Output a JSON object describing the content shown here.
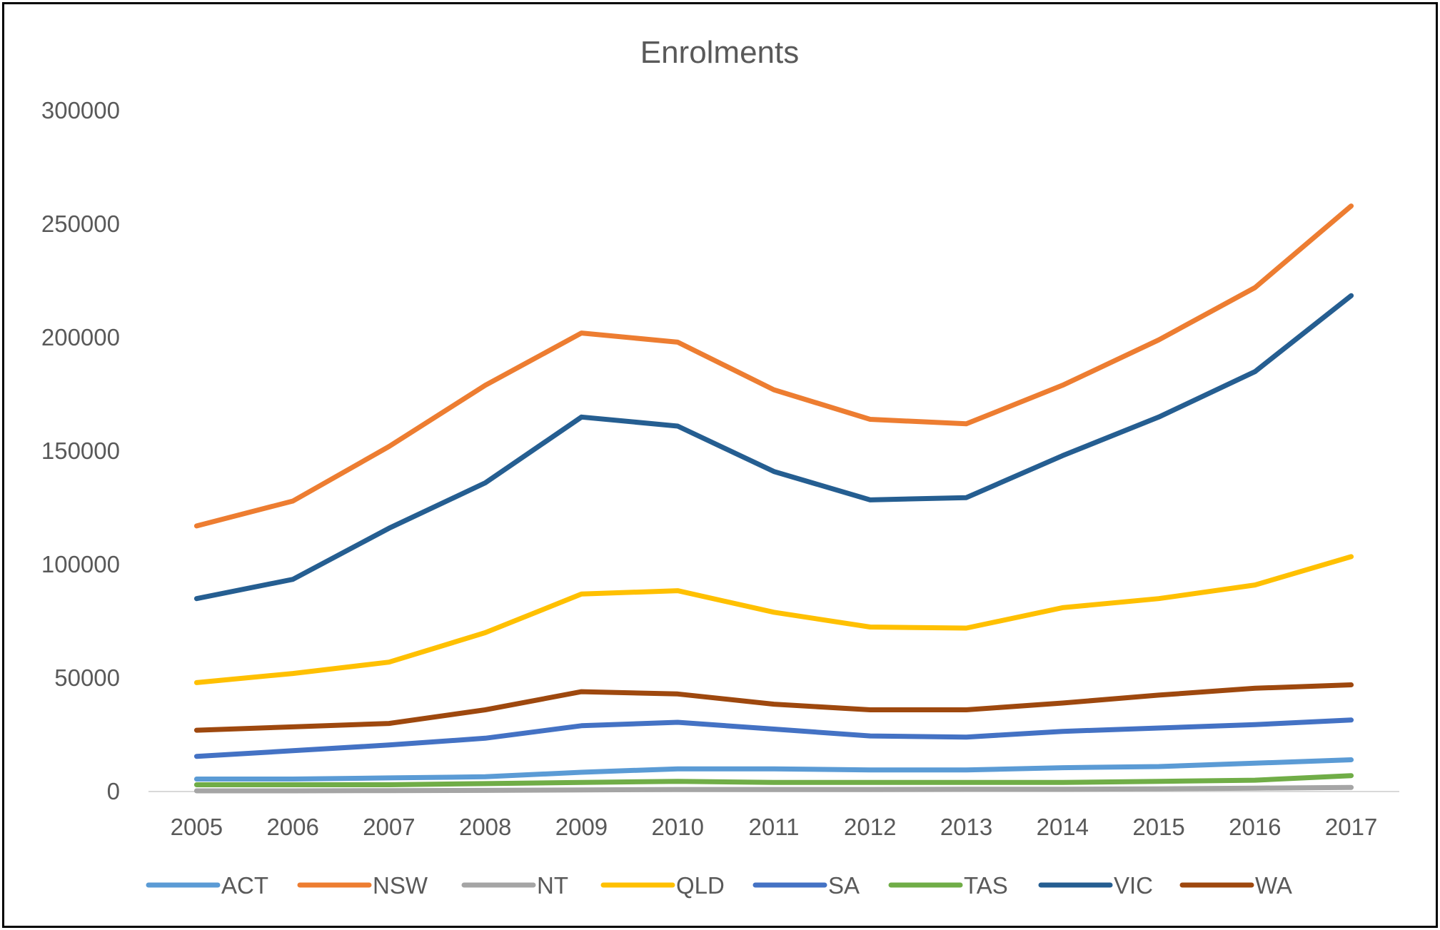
{
  "chart_data": {
    "type": "line",
    "title": "Enrolments",
    "xlabel": "",
    "ylabel": "",
    "categories": [
      "2005",
      "2006",
      "2007",
      "2008",
      "2009",
      "2010",
      "2011",
      "2012",
      "2013",
      "2014",
      "2015",
      "2016",
      "2017"
    ],
    "ylim": [
      0,
      300000
    ],
    "yticks": [
      "0",
      "50000",
      "100000",
      "150000",
      "200000",
      "250000",
      "300000"
    ],
    "grid": false,
    "legend_position": "bottom",
    "series": [
      {
        "name": "ACT",
        "color": "#5B9BD5",
        "values": [
          5500,
          5500,
          6000,
          6500,
          8500,
          10000,
          10000,
          9500,
          9500,
          10500,
          11000,
          12500,
          14000
        ]
      },
      {
        "name": "NSW",
        "color": "#ED7D31",
        "values": [
          117000,
          128000,
          152000,
          179000,
          202000,
          198000,
          177000,
          164000,
          162000,
          179000,
          199000,
          222000,
          258000
        ]
      },
      {
        "name": "NT",
        "color": "#A5A5A5",
        "values": [
          300,
          300,
          400,
          500,
          700,
          900,
          900,
          900,
          1000,
          1000,
          1200,
          1500,
          1800
        ]
      },
      {
        "name": "QLD",
        "color": "#FFC000",
        "values": [
          48000,
          52000,
          57000,
          70000,
          87000,
          88500,
          79000,
          72500,
          72000,
          81000,
          85000,
          91000,
          103500
        ]
      },
      {
        "name": "SA",
        "color": "#4472C4",
        "values": [
          15500,
          18000,
          20500,
          23500,
          29000,
          30500,
          27500,
          24500,
          24000,
          26500,
          28000,
          29500,
          31500
        ]
      },
      {
        "name": "TAS",
        "color": "#70AD47",
        "values": [
          3000,
          3000,
          3000,
          3500,
          4000,
          4500,
          4000,
          4000,
          4000,
          4000,
          4500,
          5000,
          7000
        ]
      },
      {
        "name": "VIC",
        "color": "#255E91",
        "values": [
          85000,
          93500,
          116000,
          136000,
          165000,
          161000,
          141000,
          128500,
          129500,
          148000,
          165000,
          185000,
          218500
        ]
      },
      {
        "name": "WA",
        "color": "#9E480E",
        "values": [
          27000,
          28500,
          30000,
          36000,
          44000,
          43000,
          38500,
          36000,
          36000,
          39000,
          42500,
          45500,
          47000
        ]
      }
    ]
  }
}
